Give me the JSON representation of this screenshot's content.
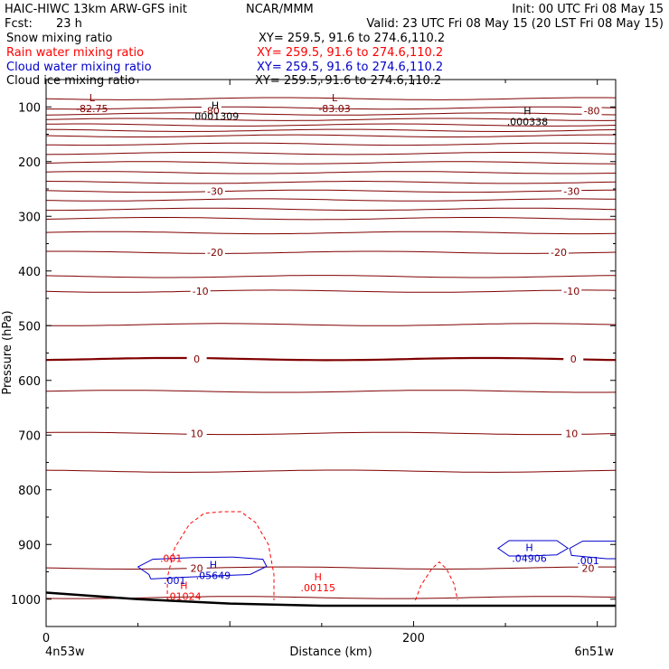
{
  "header": {
    "model": "HAIC-HIWC 13km ARW-GFS init",
    "org": "NCAR/MMM",
    "init": "Init: 00 UTC Fri 08 May 15",
    "fcst_label": "Fcst:",
    "fcst_value": "23 h",
    "valid": "Valid: 23 UTC Fri 08 May 15 (20 LST Fri 08 May 15)"
  },
  "fields": [
    {
      "name": "Snow mixing ratio",
      "xy": "XY= 259.5, 91.6 to 274.6,110.2",
      "color": "#000000"
    },
    {
      "name": "Rain water mixing ratio",
      "xy": "XY= 259.5, 91.6 to 274.6,110.2",
      "color": "#ff0000"
    },
    {
      "name": "Cloud water mixing ratio",
      "xy": "XY= 259.5, 91.6 to 274.6,110.2",
      "color": "#0000cc"
    },
    {
      "name": "Cloud ice mixing ratio",
      "xy": "XY= 259.5, 91.6 to 274.6,110.2",
      "color": "#000000"
    }
  ],
  "chart_data": {
    "type": "line",
    "ylabel": "Pressure (hPa)",
    "xlabel": "Distance (km)",
    "xlim": [
      0,
      310
    ],
    "ylim": [
      1050,
      50
    ],
    "yticks": [
      100,
      200,
      300,
      400,
      500,
      600,
      700,
      800,
      900,
      1000
    ],
    "xticks": [
      0,
      200
    ],
    "x_end_labels": {
      "left": "4n53w",
      "right": "6n51w"
    },
    "temperature_isotherms": [
      {
        "p": 85
      },
      {
        "p": 102
      },
      {
        "p": 113
      },
      {
        "p": 123
      },
      {
        "p": 133
      },
      {
        "p": 143
      },
      {
        "p": 153
      },
      {
        "p": 168
      },
      {
        "p": 185
      },
      {
        "p": 202
      },
      {
        "p": 220
      },
      {
        "p": 238
      },
      {
        "p": 254,
        "label": "-30"
      },
      {
        "p": 270
      },
      {
        "p": 287
      },
      {
        "p": 304
      },
      {
        "p": 330
      },
      {
        "p": 366,
        "label": "-20"
      },
      {
        "p": 410
      },
      {
        "p": 437,
        "label": "-10"
      },
      {
        "p": 498
      },
      {
        "p": 561,
        "label": "0"
      },
      {
        "p": 620
      },
      {
        "p": 697,
        "label": "10"
      },
      {
        "p": 766
      },
      {
        "p": 943,
        "label": "20"
      },
      {
        "p": 997
      }
    ],
    "temperature_labels": [
      {
        "text": "-80",
        "x": 90,
        "p": 107
      },
      {
        "text": "-80",
        "x": 297,
        "p": 107
      },
      {
        "text": "-30",
        "x": 92,
        "p": 254
      },
      {
        "text": "-30",
        "x": 286,
        "p": 254
      },
      {
        "text": "-20",
        "x": 92,
        "p": 366
      },
      {
        "text": "-20",
        "x": 279,
        "p": 366
      },
      {
        "text": "-10",
        "x": 84,
        "p": 437
      },
      {
        "text": "-10",
        "x": 286,
        "p": 437
      },
      {
        "text": "0",
        "x": 82,
        "p": 561
      },
      {
        "text": "0",
        "x": 287,
        "p": 561
      },
      {
        "text": "10",
        "x": 82,
        "p": 697
      },
      {
        "text": "10",
        "x": 286,
        "p": 697
      },
      {
        "text": "20",
        "x": 82,
        "p": 943
      },
      {
        "text": "20",
        "x": 295,
        "p": 943
      }
    ],
    "extrema": [
      {
        "kind": "L",
        "value": "-82.75",
        "x": 25,
        "p": 93,
        "color": "#800000"
      },
      {
        "kind": "L",
        "value": "-83.03",
        "x": 157,
        "p": 93,
        "color": "#800000"
      },
      {
        "kind": "H",
        "value": ".0001309",
        "x": 92,
        "p": 107,
        "color": "#000000"
      },
      {
        "kind": "H",
        "value": ".000338",
        "x": 262,
        "p": 117,
        "color": "#000000"
      },
      {
        "kind": "H",
        "value": ".05649",
        "x": 91,
        "p": 947,
        "color": "#0000cc"
      },
      {
        "kind": "H",
        "value": ".04906",
        "x": 263,
        "p": 915,
        "color": "#0000cc"
      },
      {
        "kind": "H",
        "value": ".01024",
        "x": 75,
        "p": 985,
        "color": "#ff0000"
      },
      {
        "kind": "H",
        "value": ".00115",
        "x": 148,
        "p": 969,
        "color": "#ff0000"
      }
    ],
    "contour_labels": [
      {
        "text": ".001",
        "x": 68,
        "p": 925,
        "color": "#ff0000"
      },
      {
        "text": ".001",
        "x": 70,
        "p": 966,
        "color": "#0000cc"
      },
      {
        "text": ".001",
        "x": 295,
        "p": 929,
        "color": "#0000cc"
      }
    ],
    "rain_contours": [
      {
        "points": [
          [
            66,
            1002
          ],
          [
            66,
            960
          ],
          [
            70,
            906
          ],
          [
            78,
            863
          ],
          [
            86,
            843
          ],
          [
            96,
            840
          ],
          [
            106,
            840
          ],
          [
            114,
            860
          ],
          [
            121,
            900
          ],
          [
            124,
            955
          ],
          [
            124,
            1002
          ]
        ]
      },
      {
        "points": [
          [
            201,
            1002
          ],
          [
            204,
            975
          ],
          [
            210,
            944
          ],
          [
            214,
            932
          ],
          [
            218,
            945
          ],
          [
            222,
            972
          ],
          [
            224,
            1002
          ]
        ]
      }
    ],
    "cloud_contours": [
      {
        "points": [
          [
            57,
            963
          ],
          [
            56,
            955
          ],
          [
            50,
            941
          ],
          [
            58,
            927
          ],
          [
            80,
            924
          ],
          [
            102,
            923
          ],
          [
            118,
            927
          ],
          [
            120,
            940
          ],
          [
            111,
            955
          ],
          [
            95,
            957
          ],
          [
            74,
            960
          ],
          [
            57,
            963
          ]
        ]
      },
      {
        "points": [
          [
            310,
            894
          ],
          [
            292,
            894
          ],
          [
            285,
            907
          ],
          [
            286,
            920
          ],
          [
            305,
            926
          ],
          [
            310,
            926
          ]
        ]
      },
      {
        "points": [
          [
            262,
            893
          ],
          [
            278,
            893
          ],
          [
            284,
            907
          ],
          [
            278,
            919
          ],
          [
            262,
            921
          ],
          [
            252,
            921
          ],
          [
            246,
            907
          ],
          [
            252,
            893
          ],
          [
            262,
            893
          ]
        ]
      }
    ],
    "terrain": [
      [
        0,
        988
      ],
      [
        50,
        1000
      ],
      [
        100,
        1008
      ],
      [
        150,
        1012
      ],
      [
        200,
        1012
      ],
      [
        250,
        1012
      ],
      [
        310,
        1012
      ]
    ]
  }
}
